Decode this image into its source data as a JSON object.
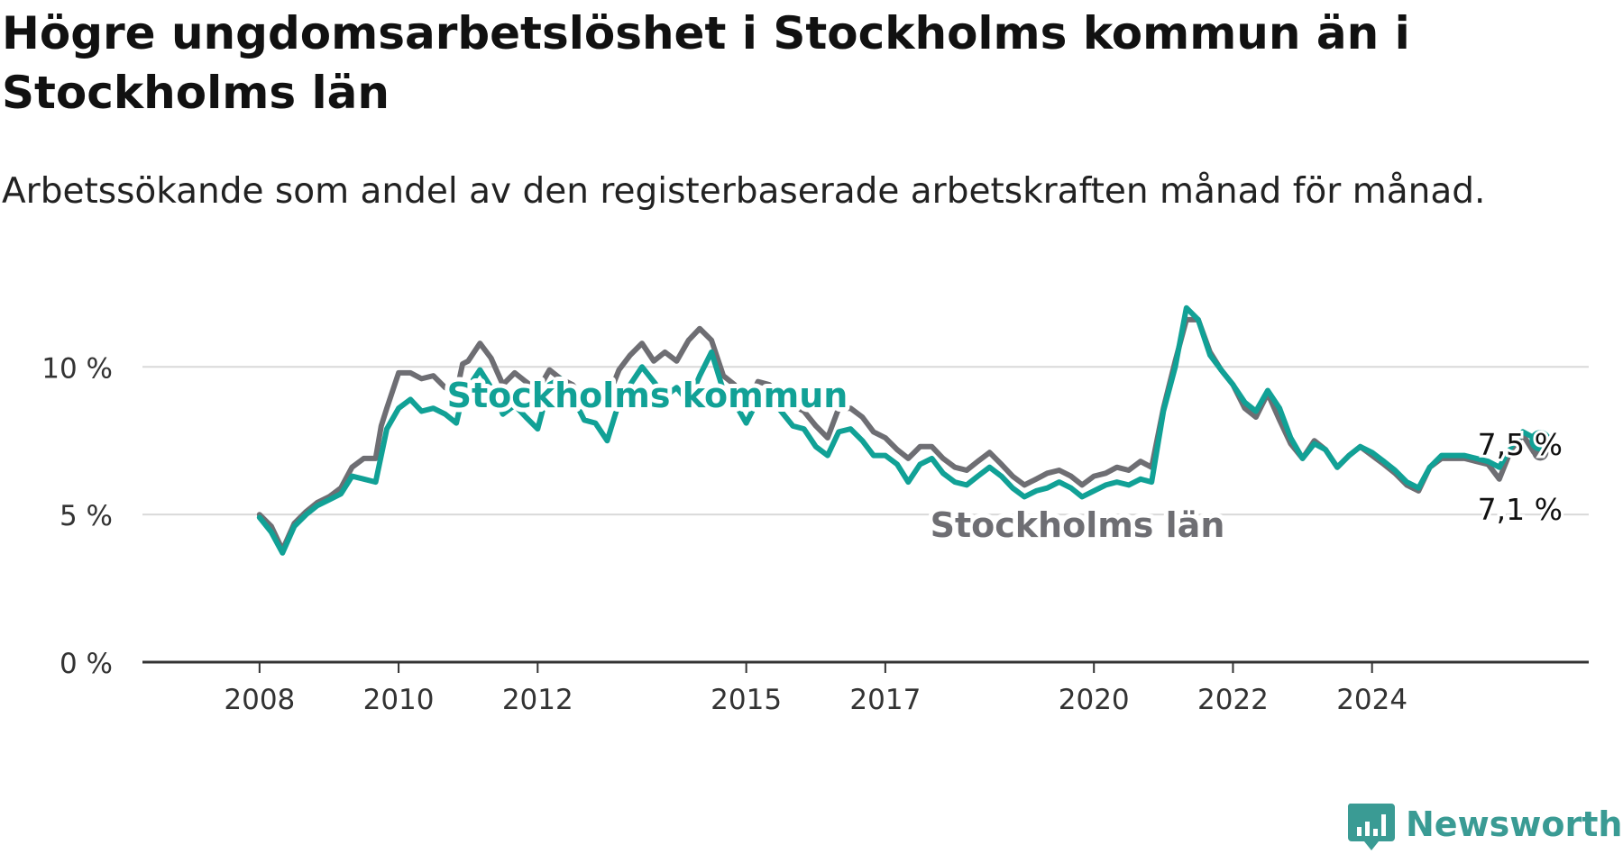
{
  "title": "Högre ungdomsarbetslöshet i Stockholms kommun än i Stockholms län",
  "subtitle": "Arbetssökande som andel av den registerbaserade arbetskraften månad för månad.",
  "brand": {
    "name": "Newsworthy",
    "icon": "newsworthy-bar-chart-icon",
    "color": "#3a9b94"
  },
  "chart_data": {
    "type": "line",
    "x_unit": "year (monthly data, decimal years)",
    "ylim": [
      0,
      13
    ],
    "y_ticks": [
      {
        "value": 0,
        "label": "0 %"
      },
      {
        "value": 5,
        "label": "5 %"
      },
      {
        "value": 10,
        "label": "10 %"
      }
    ],
    "x_ticks": [
      "2008",
      "2010",
      "2012",
      "2015",
      "2017",
      "2020",
      "2022",
      "2024"
    ],
    "grid": "horizontal",
    "series": [
      {
        "name": "Stockholms län",
        "color": "#6e6e73",
        "end_label": "7,1 %",
        "points": [
          [
            2008.0,
            5.0
          ],
          [
            2008.17,
            4.6
          ],
          [
            2008.33,
            3.8
          ],
          [
            2008.5,
            4.7
          ],
          [
            2008.67,
            5.1
          ],
          [
            2008.83,
            5.4
          ],
          [
            2009.0,
            5.6
          ],
          [
            2009.17,
            5.9
          ],
          [
            2009.33,
            6.6
          ],
          [
            2009.5,
            6.9
          ],
          [
            2009.67,
            6.9
          ],
          [
            2009.75,
            8.0
          ],
          [
            2009.83,
            8.6
          ],
          [
            2010.0,
            9.8
          ],
          [
            2010.17,
            9.8
          ],
          [
            2010.33,
            9.6
          ],
          [
            2010.5,
            9.7
          ],
          [
            2010.67,
            9.3
          ],
          [
            2010.83,
            9.1
          ],
          [
            2010.92,
            10.1
          ],
          [
            2011.0,
            10.2
          ],
          [
            2011.17,
            10.8
          ],
          [
            2011.33,
            10.3
          ],
          [
            2011.5,
            9.4
          ],
          [
            2011.67,
            9.8
          ],
          [
            2011.83,
            9.5
          ],
          [
            2012.0,
            9.2
          ],
          [
            2012.17,
            9.9
          ],
          [
            2012.33,
            9.6
          ],
          [
            2012.5,
            9.4
          ],
          [
            2012.67,
            8.9
          ],
          [
            2012.83,
            9.3
          ],
          [
            2013.0,
            8.9
          ],
          [
            2013.17,
            9.9
          ],
          [
            2013.33,
            10.4
          ],
          [
            2013.5,
            10.8
          ],
          [
            2013.67,
            10.2
          ],
          [
            2013.83,
            10.5
          ],
          [
            2014.0,
            10.2
          ],
          [
            2014.17,
            10.9
          ],
          [
            2014.33,
            11.3
          ],
          [
            2014.5,
            10.9
          ],
          [
            2014.67,
            9.7
          ],
          [
            2014.83,
            9.4
          ],
          [
            2015.0,
            8.7
          ],
          [
            2015.17,
            9.5
          ],
          [
            2015.33,
            9.4
          ],
          [
            2015.5,
            9.0
          ],
          [
            2015.67,
            8.7
          ],
          [
            2015.83,
            8.5
          ],
          [
            2016.0,
            8.0
          ],
          [
            2016.17,
            7.6
          ],
          [
            2016.33,
            8.6
          ],
          [
            2016.5,
            8.6
          ],
          [
            2016.67,
            8.3
          ],
          [
            2016.83,
            7.8
          ],
          [
            2017.0,
            7.6
          ],
          [
            2017.17,
            7.2
          ],
          [
            2017.33,
            6.9
          ],
          [
            2017.5,
            7.3
          ],
          [
            2017.67,
            7.3
          ],
          [
            2017.83,
            6.9
          ],
          [
            2018.0,
            6.6
          ],
          [
            2018.17,
            6.5
          ],
          [
            2018.33,
            6.8
          ],
          [
            2018.5,
            7.1
          ],
          [
            2018.67,
            6.7
          ],
          [
            2018.83,
            6.3
          ],
          [
            2019.0,
            6.0
          ],
          [
            2019.17,
            6.2
          ],
          [
            2019.33,
            6.4
          ],
          [
            2019.5,
            6.5
          ],
          [
            2019.67,
            6.3
          ],
          [
            2019.83,
            6.0
          ],
          [
            2020.0,
            6.3
          ],
          [
            2020.17,
            6.4
          ],
          [
            2020.33,
            6.6
          ],
          [
            2020.5,
            6.5
          ],
          [
            2020.67,
            6.8
          ],
          [
            2020.83,
            6.6
          ],
          [
            2021.0,
            8.6
          ],
          [
            2021.17,
            10.2
          ],
          [
            2021.33,
            11.6
          ],
          [
            2021.5,
            11.6
          ],
          [
            2021.67,
            10.5
          ],
          [
            2021.83,
            9.9
          ],
          [
            2022.0,
            9.4
          ],
          [
            2022.17,
            8.6
          ],
          [
            2022.33,
            8.3
          ],
          [
            2022.5,
            9.1
          ],
          [
            2022.67,
            8.2
          ],
          [
            2022.83,
            7.4
          ],
          [
            2023.0,
            6.9
          ],
          [
            2023.17,
            7.5
          ],
          [
            2023.33,
            7.2
          ],
          [
            2023.5,
            6.6
          ],
          [
            2023.67,
            7.0
          ],
          [
            2023.83,
            7.3
          ],
          [
            2024.0,
            7.0
          ],
          [
            2024.17,
            6.7
          ],
          [
            2024.33,
            6.4
          ],
          [
            2024.5,
            6.0
          ],
          [
            2024.67,
            5.8
          ],
          [
            2024.83,
            6.6
          ],
          [
            2025.0,
            6.9
          ],
          [
            2025.17,
            6.9
          ],
          [
            2025.33,
            6.9
          ],
          [
            2025.5,
            6.8
          ],
          [
            2025.67,
            6.7
          ],
          [
            2025.83,
            6.2
          ],
          [
            2026.0,
            7.2
          ],
          [
            2026.17,
            7.7
          ],
          [
            2026.33,
            7.1
          ],
          [
            2026.42,
            7.1
          ]
        ]
      },
      {
        "name": "Stockholms kommun",
        "color": "#11a196",
        "end_label": "7,5 %",
        "points": [
          [
            2008.0,
            4.9
          ],
          [
            2008.17,
            4.4
          ],
          [
            2008.33,
            3.7
          ],
          [
            2008.5,
            4.6
          ],
          [
            2008.67,
            5.0
          ],
          [
            2008.83,
            5.3
          ],
          [
            2009.0,
            5.5
          ],
          [
            2009.17,
            5.7
          ],
          [
            2009.33,
            6.3
          ],
          [
            2009.5,
            6.2
          ],
          [
            2009.67,
            6.1
          ],
          [
            2009.75,
            7.0
          ],
          [
            2009.83,
            7.9
          ],
          [
            2010.0,
            8.6
          ],
          [
            2010.17,
            8.9
          ],
          [
            2010.33,
            8.5
          ],
          [
            2010.5,
            8.6
          ],
          [
            2010.67,
            8.4
          ],
          [
            2010.83,
            8.1
          ],
          [
            2010.92,
            9.0
          ],
          [
            2011.0,
            9.3
          ],
          [
            2011.17,
            9.9
          ],
          [
            2011.33,
            9.3
          ],
          [
            2011.5,
            8.4
          ],
          [
            2011.67,
            8.7
          ],
          [
            2011.83,
            8.3
          ],
          [
            2012.0,
            7.9
          ],
          [
            2012.17,
            9.4
          ],
          [
            2012.33,
            9.6
          ],
          [
            2012.5,
            9.0
          ],
          [
            2012.67,
            8.2
          ],
          [
            2012.83,
            8.1
          ],
          [
            2013.0,
            7.5
          ],
          [
            2013.17,
            8.8
          ],
          [
            2013.33,
            9.4
          ],
          [
            2013.5,
            10.0
          ],
          [
            2013.67,
            9.5
          ],
          [
            2013.83,
            9.0
          ],
          [
            2014.0,
            9.3
          ],
          [
            2014.17,
            8.8
          ],
          [
            2014.33,
            9.7
          ],
          [
            2014.5,
            10.5
          ],
          [
            2014.67,
            9.2
          ],
          [
            2014.83,
            8.8
          ],
          [
            2015.0,
            8.1
          ],
          [
            2015.17,
            8.9
          ],
          [
            2015.33,
            9.0
          ],
          [
            2015.5,
            8.5
          ],
          [
            2015.67,
            8.0
          ],
          [
            2015.83,
            7.9
          ],
          [
            2016.0,
            7.3
          ],
          [
            2016.17,
            7.0
          ],
          [
            2016.33,
            7.8
          ],
          [
            2016.5,
            7.9
          ],
          [
            2016.67,
            7.5
          ],
          [
            2016.83,
            7.0
          ],
          [
            2017.0,
            7.0
          ],
          [
            2017.17,
            6.7
          ],
          [
            2017.33,
            6.1
          ],
          [
            2017.5,
            6.7
          ],
          [
            2017.67,
            6.9
          ],
          [
            2017.83,
            6.4
          ],
          [
            2018.0,
            6.1
          ],
          [
            2018.17,
            6.0
          ],
          [
            2018.33,
            6.3
          ],
          [
            2018.5,
            6.6
          ],
          [
            2018.67,
            6.3
          ],
          [
            2018.83,
            5.9
          ],
          [
            2019.0,
            5.6
          ],
          [
            2019.17,
            5.8
          ],
          [
            2019.33,
            5.9
          ],
          [
            2019.5,
            6.1
          ],
          [
            2019.67,
            5.9
          ],
          [
            2019.83,
            5.6
          ],
          [
            2020.0,
            5.8
          ],
          [
            2020.17,
            6.0
          ],
          [
            2020.33,
            6.1
          ],
          [
            2020.5,
            6.0
          ],
          [
            2020.67,
            6.2
          ],
          [
            2020.83,
            6.1
          ],
          [
            2021.0,
            8.5
          ],
          [
            2021.17,
            10.0
          ],
          [
            2021.33,
            12.0
          ],
          [
            2021.5,
            11.6
          ],
          [
            2021.67,
            10.4
          ],
          [
            2021.83,
            9.9
          ],
          [
            2022.0,
            9.4
          ],
          [
            2022.17,
            8.8
          ],
          [
            2022.33,
            8.5
          ],
          [
            2022.5,
            9.2
          ],
          [
            2022.67,
            8.6
          ],
          [
            2022.83,
            7.6
          ],
          [
            2023.0,
            6.9
          ],
          [
            2023.17,
            7.4
          ],
          [
            2023.33,
            7.2
          ],
          [
            2023.5,
            6.6
          ],
          [
            2023.67,
            7.0
          ],
          [
            2023.83,
            7.3
          ],
          [
            2024.0,
            7.1
          ],
          [
            2024.17,
            6.8
          ],
          [
            2024.33,
            6.5
          ],
          [
            2024.5,
            6.1
          ],
          [
            2024.67,
            5.9
          ],
          [
            2024.83,
            6.6
          ],
          [
            2025.0,
            7.0
          ],
          [
            2025.17,
            7.0
          ],
          [
            2025.33,
            7.0
          ],
          [
            2025.5,
            6.9
          ],
          [
            2025.67,
            6.8
          ],
          [
            2025.83,
            6.6
          ],
          [
            2026.0,
            7.3
          ],
          [
            2026.17,
            7.8
          ],
          [
            2026.33,
            7.6
          ],
          [
            2026.42,
            7.5
          ]
        ]
      }
    ]
  }
}
